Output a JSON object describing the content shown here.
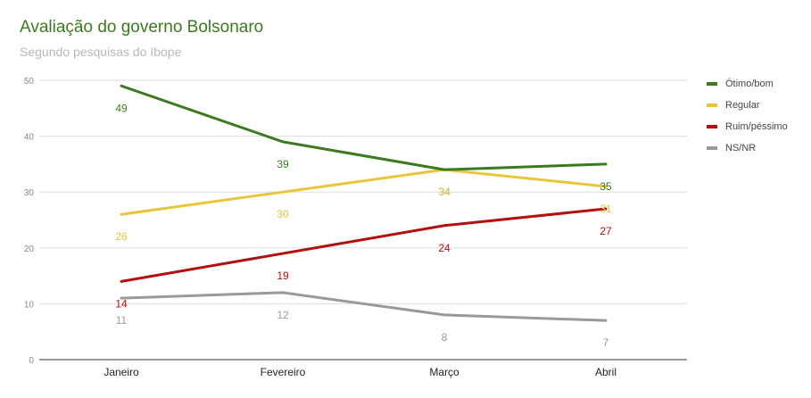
{
  "chart_data": {
    "type": "line",
    "title": "Avaliação do governo Bolsonaro",
    "subtitle": "Segundo pesquisas do Ibope",
    "categories": [
      "Janeiro",
      "Fevereiro",
      "Março",
      "Abril"
    ],
    "ylim": [
      0,
      50
    ],
    "yticks": [
      "0",
      "10",
      "20",
      "30",
      "40",
      "50"
    ],
    "grid": true,
    "legend_position": "right",
    "series": [
      {
        "name": "Ótimo/bom",
        "values": [
          49,
          39,
          34,
          35
        ],
        "color": "#3b7a1f"
      },
      {
        "name": "Regular",
        "values": [
          26,
          30,
          34,
          31
        ],
        "color": "#e8c53a"
      },
      {
        "name": "Ruim/péssimo",
        "values": [
          14,
          19,
          24,
          27
        ],
        "color": "#b30f0f"
      },
      {
        "name": "NS/NR",
        "values": [
          11,
          12,
          8,
          7
        ],
        "color": "#999999"
      }
    ]
  }
}
